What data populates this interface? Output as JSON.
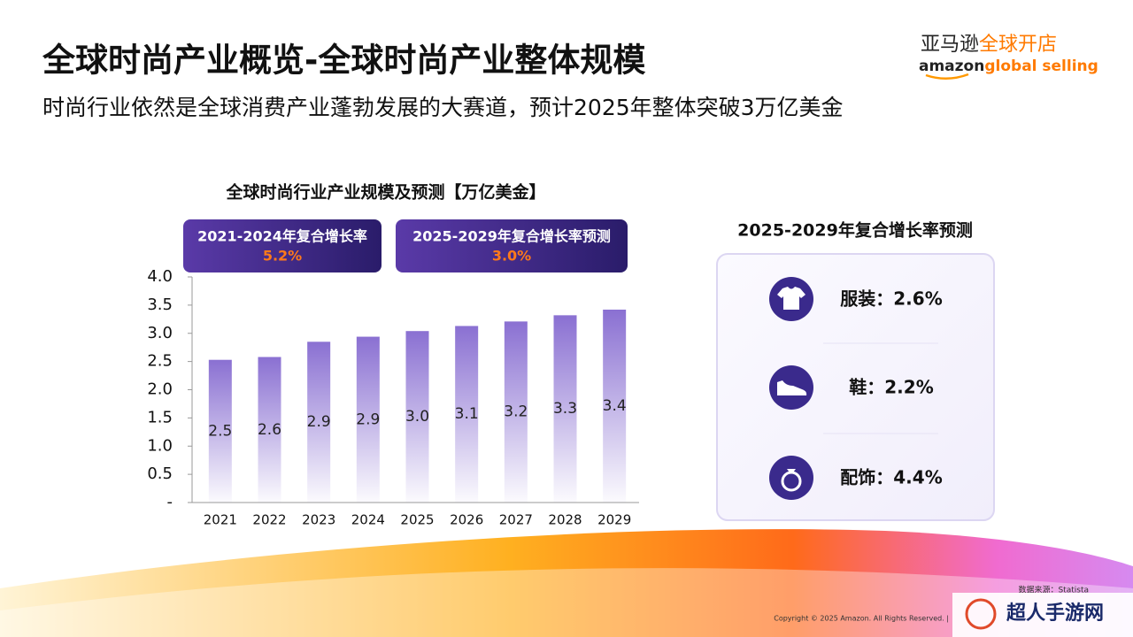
{
  "header": {
    "title": "全球时尚产业概览-全球时尚产业整体规模",
    "subtitle": "时尚行业依然是全球消费产业蓬勃发展的大赛道，预计2025年整体突破3万亿美金",
    "logo_cn_a": "亚马逊",
    "logo_cn_b": "全球开店",
    "logo_en_a": "amazon",
    "logo_en_b": "global selling"
  },
  "chart_data": {
    "type": "bar",
    "title": "全球时尚行业产业规模及预测【万亿美金】",
    "categories": [
      "2021",
      "2022",
      "2023",
      "2024",
      "2025",
      "2026",
      "2027",
      "2028",
      "2029"
    ],
    "values": [
      2.53,
      2.58,
      2.85,
      2.94,
      3.04,
      3.13,
      3.21,
      3.32,
      3.42
    ],
    "value_labels": [
      "2.5",
      "2.6",
      "2.9",
      "2.9",
      "3.0",
      "3.1",
      "3.2",
      "3.3",
      "3.4"
    ],
    "color": "#8a70d2",
    "ylim": [
      0,
      4
    ],
    "yticks": [
      {
        "value": 0,
        "label": "-"
      },
      0.5,
      {
        "value": 1,
        "label": "1.0"
      },
      1.5,
      {
        "value": 2,
        "label": "2.0"
      },
      2.5,
      {
        "value": 3,
        "label": "3.0"
      },
      3.5,
      {
        "value": 4,
        "label": "4.0"
      }
    ]
  },
  "callouts": [
    {
      "label": "2021-2024年复合增长率",
      "value": "5.2%"
    },
    {
      "label": "2025-2029年复合增长率预测",
      "value": "3.0%"
    }
  ],
  "panel": {
    "title": "2025-2029年复合增长率预测",
    "items": [
      "服装：2.6%",
      "鞋：2.2%",
      "配饰：4.4%"
    ]
  },
  "footer": {
    "source": "数据来源：Statista",
    "copyright": "Copyright © 2025 Amazon. All Rights Reserved.  |",
    "watermark": "超人手游网"
  }
}
